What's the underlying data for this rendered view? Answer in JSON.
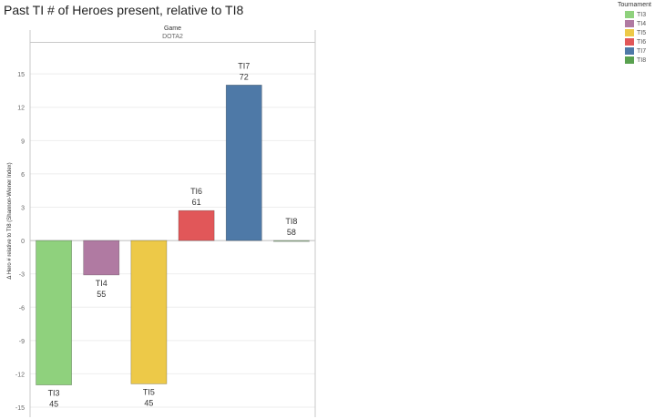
{
  "chart_data": {
    "type": "bar",
    "title": "Past TI # of Heroes present, relative to TI8",
    "column_header": "Game",
    "column_value": "DOTA2",
    "ylabel": "Δ Hero # relative to TI8 (Shannon-Wiener Index)",
    "xlabel": "",
    "ylim": [
      -15.9,
      17.8
    ],
    "yticks": [
      15,
      12,
      9,
      6,
      3,
      0,
      -3,
      -6,
      -9,
      -12,
      -15
    ],
    "categories": [
      "TI3",
      "TI4",
      "TI5",
      "TI6",
      "TI7",
      "TI8"
    ],
    "values": [
      -13.0,
      -3.1,
      -12.9,
      2.7,
      14.0,
      0
    ],
    "counts": [
      "45",
      "55",
      "45",
      "61",
      "72",
      "58"
    ],
    "colors": [
      "#8fd17d",
      "#b07aa2",
      "#edc948",
      "#e15759",
      "#4e79a7",
      "#59a14f"
    ],
    "legend_title": "Tournament",
    "legend": [
      "TI3",
      "TI4",
      "TI5",
      "TI6",
      "TI7",
      "TI8"
    ],
    "grid": true,
    "legend_position": "top-right"
  }
}
